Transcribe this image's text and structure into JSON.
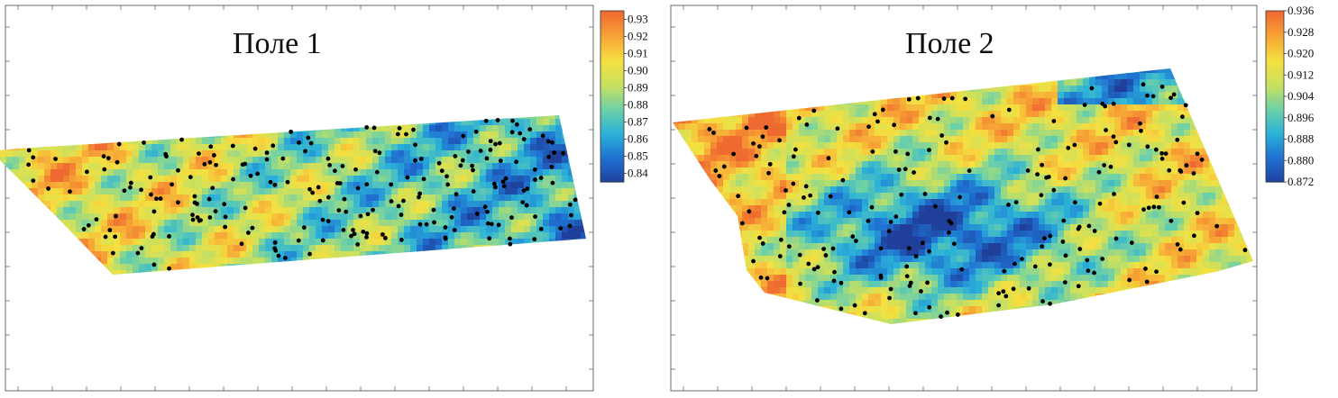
{
  "panels": [
    {
      "id": "field1",
      "title": "Поле 1",
      "scale_values": [
        "0.93",
        "0.92",
        "0.91",
        "0.90",
        "0.89",
        "0.88",
        "0.87",
        "0.86",
        "0.85",
        "0.84"
      ],
      "scale_range": [
        0.835,
        0.935
      ]
    },
    {
      "id": "field2",
      "title": "Поле 2",
      "scale_values": [
        "0.936",
        "0.928",
        "0.920",
        "0.912",
        "0.904",
        "0.896",
        "0.888",
        "0.880",
        "0.872"
      ],
      "scale_range": [
        0.872,
        0.936
      ]
    }
  ],
  "colors": {
    "scale_stops": [
      "#1f3f9a",
      "#1f6fd0",
      "#2ab0d8",
      "#6cd0a8",
      "#c8e060",
      "#f4e040",
      "#f7a436",
      "#ef6a30"
    ],
    "sample_point": "#000000",
    "frame": "#6a6a6a"
  }
}
